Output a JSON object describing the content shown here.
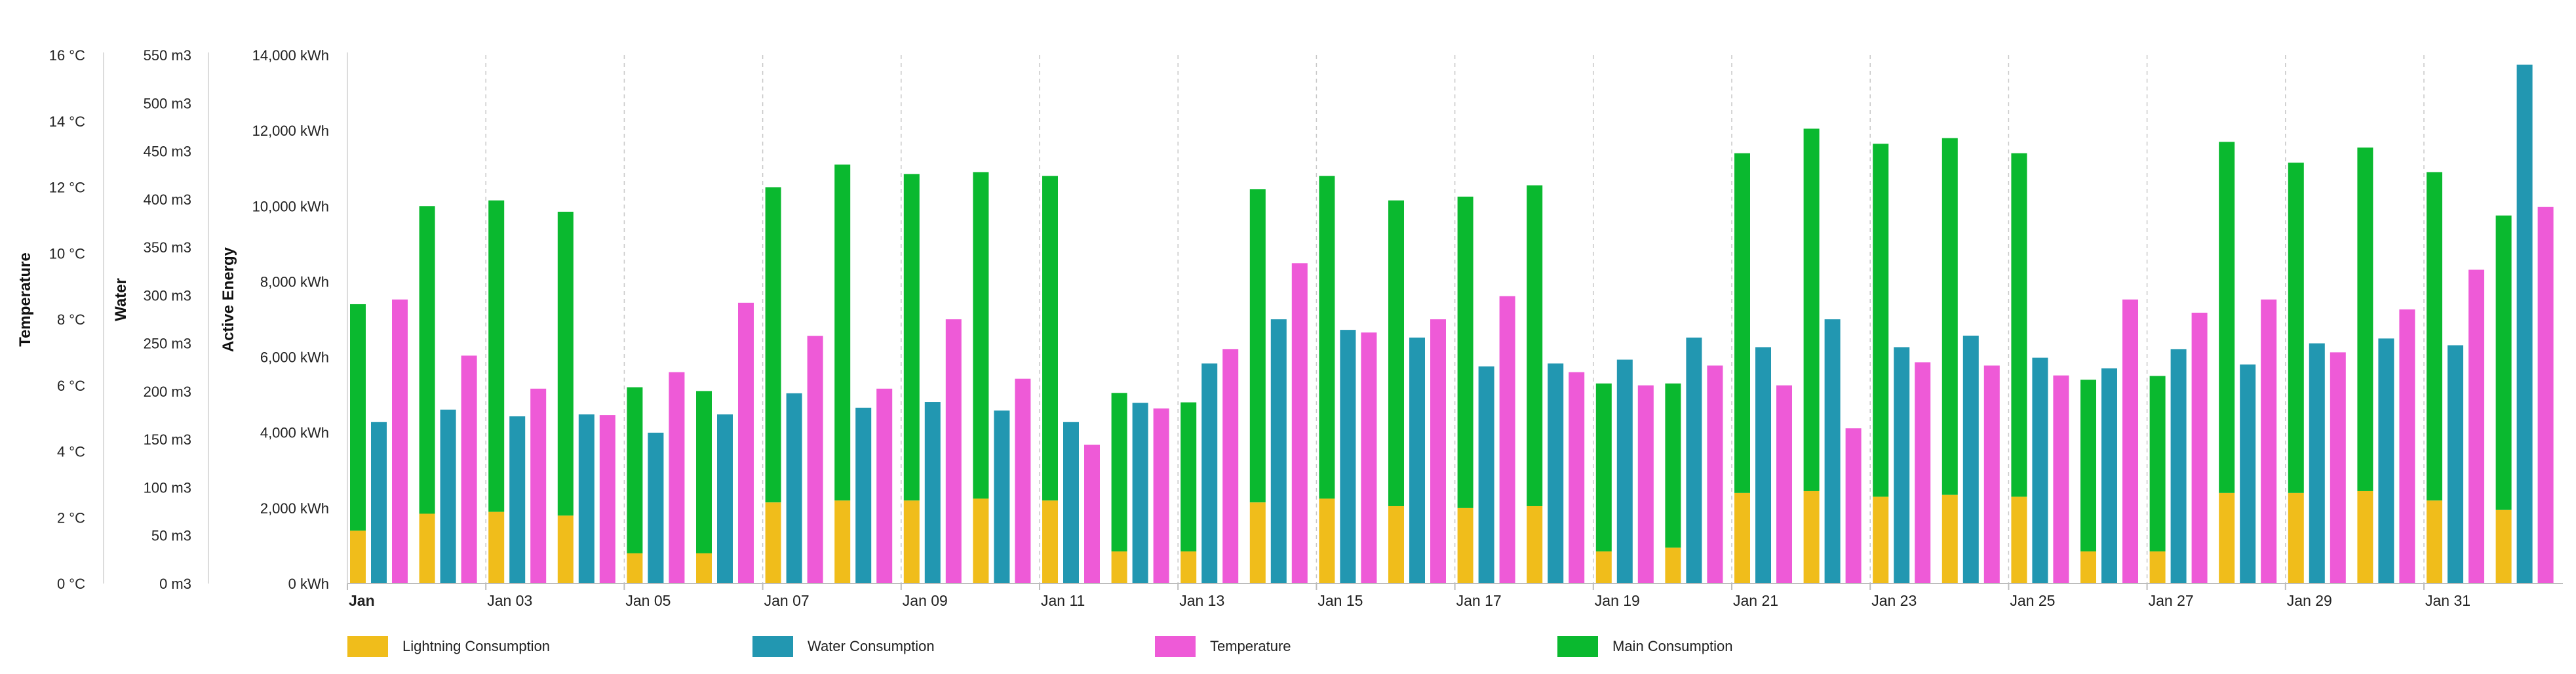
{
  "chart_data": {
    "type": "bar",
    "title": "",
    "axes": {
      "temperature": {
        "title": "Temperature",
        "unit": "°C",
        "min": 0,
        "max": 16,
        "step": 2,
        "ticks": [
          "0 °C",
          "2 °C",
          "4 °C",
          "6 °C",
          "8 °C",
          "10 °C",
          "12 °C",
          "14 °C",
          "16 °C"
        ]
      },
      "water": {
        "title": "Water",
        "unit": "m3",
        "min": 0,
        "max": 550,
        "step": 50,
        "ticks": [
          "0 m3",
          "50 m3",
          "100 m3",
          "150 m3",
          "200 m3",
          "250 m3",
          "300 m3",
          "350 m3",
          "400 m3",
          "450 m3",
          "500 m3",
          "550 m3"
        ]
      },
      "energy": {
        "title": "Active Energy",
        "unit": "kWh",
        "min": 0,
        "max": 14000,
        "step": 2000,
        "ticks": [
          "0 kWh",
          "2,000 kWh",
          "4,000 kWh",
          "6,000 kWh",
          "8,000 kWh",
          "10,000 kWh",
          "12,000 kWh",
          "14,000 kWh"
        ]
      }
    },
    "x_tick_labels": [
      "Jan",
      "Jan 03",
      "Jan 05",
      "Jan 07",
      "Jan 09",
      "Jan 11",
      "Jan 13",
      "Jan 15",
      "Jan 17",
      "Jan 19",
      "Jan 21",
      "Jan 23",
      "Jan 25",
      "Jan 27",
      "Jan 29",
      "Jan 31"
    ],
    "x_tick_days": [
      1,
      3,
      5,
      7,
      9,
      11,
      13,
      15,
      17,
      19,
      21,
      23,
      25,
      27,
      29,
      31
    ],
    "days": [
      1,
      2,
      3,
      4,
      5,
      6,
      7,
      8,
      9,
      10,
      11,
      12,
      13,
      14,
      15,
      16,
      17,
      18,
      19,
      20,
      21,
      22,
      23,
      24,
      25,
      26,
      27,
      28,
      29,
      30,
      31,
      32
    ],
    "series": [
      {
        "name": "Lightning Consumption",
        "axis": "energy",
        "color": "#f0bd1b",
        "stack": "energy",
        "values": [
          1400,
          1850,
          1900,
          1800,
          800,
          800,
          2150,
          2200,
          2200,
          2250,
          2200,
          850,
          850,
          2150,
          2250,
          2050,
          2000,
          2050,
          850,
          950,
          2400,
          2450,
          2300,
          2350,
          2300,
          850,
          850,
          2400,
          2400,
          2450,
          2200,
          1950
        ]
      },
      {
        "name": "Main Consumption",
        "axis": "energy",
        "color": "#0ab92f",
        "stack": "energy",
        "values": [
          6000,
          8150,
          8250,
          8050,
          4400,
          4300,
          8350,
          8900,
          8650,
          8650,
          8600,
          4200,
          3950,
          8300,
          8550,
          8100,
          8250,
          8500,
          4450,
          4350,
          9000,
          9600,
          9350,
          9450,
          9100,
          4550,
          4650,
          9300,
          8750,
          9100,
          8700,
          7800
        ]
      },
      {
        "name": "Water Consumption",
        "axis": "water",
        "color": "#2297b1",
        "values": [
          168,
          181,
          174,
          176,
          157,
          176,
          198,
          183,
          189,
          180,
          168,
          188,
          229,
          275,
          264,
          256,
          226,
          229,
          233,
          256,
          246,
          275,
          246,
          258,
          235,
          224,
          244,
          228,
          250,
          255,
          248,
          540
        ]
      },
      {
        "name": "Temperature",
        "axis": "temperature",
        "color": "#ee5ad7",
        "values": [
          8.6,
          6.9,
          5.9,
          5.1,
          6.4,
          8.5,
          7.5,
          5.9,
          8.0,
          6.2,
          4.2,
          5.3,
          7.1,
          9.7,
          7.6,
          8.0,
          8.7,
          6.4,
          6.0,
          6.6,
          6.0,
          4.7,
          6.7,
          6.6,
          6.3,
          8.6,
          8.2,
          8.6,
          7.0,
          8.3,
          9.5,
          11.4
        ]
      }
    ],
    "legend": {
      "placement": "bottom-left",
      "items": [
        {
          "label": "Lightning Consumption",
          "color": "#f0bd1b"
        },
        {
          "label": "Water Consumption",
          "color": "#2297b1"
        },
        {
          "label": "Temperature",
          "color": "#ee5ad7"
        },
        {
          "label": "Main Consumption",
          "color": "#0ab92f"
        }
      ]
    },
    "grid": {
      "vertical_dashed": true,
      "horizontal": false
    }
  }
}
